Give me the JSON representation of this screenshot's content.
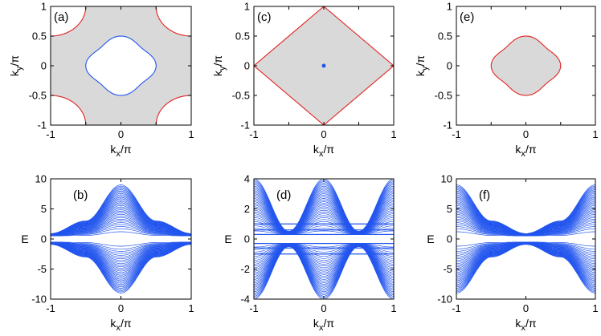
{
  "figure": {
    "colors": {
      "blue": "#2255ee",
      "red": "#e32222",
      "fill": "#d9d9d9",
      "axis": "#000000"
    }
  },
  "chart_data": [
    {
      "panel": "(a)",
      "type": "contour",
      "xlabel": "k_x/π",
      "ylabel": "k_y/π",
      "xlim": [
        -1,
        1
      ],
      "ylim": [
        -1,
        1
      ],
      "xticks": [
        "-1",
        "-0.5",
        "0",
        "0.5",
        "1"
      ],
      "yticks": [
        "-1",
        "-0.5",
        "0",
        "0.5",
        "1"
      ],
      "shown_xticks": [
        "-1",
        "0",
        "1"
      ],
      "shaded_region": "gray between the blue inner ring and the red corner arcs",
      "series": [
        {
          "color": "blue",
          "shape": "closed rounded ring",
          "center": [
            0,
            0
          ],
          "radius_axis": 0.5,
          "radius_diagonal": 0.42
        },
        {
          "color": "red",
          "shape": "four corner arcs",
          "intercepts": [
            [
              -1,
              -0.5
            ],
            [
              -0.5,
              -1
            ],
            [
              1,
              0.5
            ],
            [
              0.5,
              1
            ],
            [
              -1,
              0.5
            ],
            [
              -0.5,
              1
            ],
            [
              1,
              -0.5
            ],
            [
              0.5,
              -1
            ]
          ]
        }
      ]
    },
    {
      "panel": "(c)",
      "type": "contour",
      "xlabel": "k_x/π",
      "ylabel": "k_y/π",
      "xlim": [
        -1,
        1
      ],
      "ylim": [
        -1,
        1
      ],
      "xticks": [
        "-1",
        "-0.5",
        "0",
        "0.5",
        "1"
      ],
      "yticks": [
        "-1",
        "-0.5",
        "0",
        "0.5",
        "1"
      ],
      "shown_xticks": [
        "-1",
        "0",
        "1"
      ],
      "shaded_region": "gray diamond",
      "series": [
        {
          "color": "red",
          "shape": "diamond",
          "vertices": [
            [
              1,
              0
            ],
            [
              0,
              1
            ],
            [
              -1,
              0
            ],
            [
              0,
              -1
            ]
          ]
        },
        {
          "color": "blue",
          "shape": "point",
          "point": [
            0,
            0
          ]
        }
      ]
    },
    {
      "panel": "(e)",
      "type": "contour",
      "xlabel": "k_x/π",
      "ylabel": "k_y/π",
      "xlim": [
        -1,
        1
      ],
      "ylim": [
        -1,
        1
      ],
      "xticks": [
        "-1",
        "-0.5",
        "0",
        "0.5",
        "1"
      ],
      "yticks": [
        "-1",
        "-0.5",
        "0",
        "0.5",
        "1"
      ],
      "shown_xticks": [
        "-1",
        "0",
        "1"
      ],
      "shaded_region": "gray disk inside the red ring",
      "series": [
        {
          "color": "red",
          "shape": "closed rounded ring",
          "center": [
            0,
            0
          ],
          "radius_axis": 0.5,
          "radius_diagonal": 0.42
        }
      ]
    },
    {
      "panel": "(b)",
      "type": "line",
      "xlabel": "k_x/π",
      "ylabel": "E",
      "xlim": [
        -1,
        1
      ],
      "ylim": [
        -10,
        10
      ],
      "xticks": [
        "-1",
        "0",
        "1"
      ],
      "yticks": [
        "-10",
        "-5",
        "0",
        "5",
        "10"
      ],
      "band_color": "blue",
      "band_edges": {
        "x": [
          -1,
          -0.5,
          0,
          0.5,
          1
        ],
        "upper": [
          0.9,
          3,
          9,
          3,
          0.9
        ],
        "inner": [
          0.5,
          0.6,
          1.2,
          0.6,
          0.5
        ]
      },
      "band_count_per_sign": 32
    },
    {
      "panel": "(d)",
      "type": "line",
      "xlabel": "k_x/π",
      "ylabel": "E",
      "xlim": [
        -1,
        1
      ],
      "ylim": [
        -4,
        4
      ],
      "xticks": [
        "-1",
        "0",
        "1"
      ],
      "yticks": [
        "-4",
        "-2",
        "0",
        "2",
        "4"
      ],
      "band_color": "blue",
      "band_edges": {
        "x": [
          -1,
          -0.5,
          0,
          0.5,
          1
        ],
        "upper": [
          4,
          0.5,
          4,
          0.5,
          4
        ],
        "inner": [
          0.3,
          0.3,
          0.3,
          0.3,
          0.3
        ]
      },
      "flat_band_energies": [
        0.3,
        0.6,
        1.0,
        -0.3,
        -0.6,
        -1.0
      ],
      "band_count_per_sign": 32
    },
    {
      "panel": "(f)",
      "type": "line",
      "xlabel": "k_x/π",
      "ylabel": "E",
      "xlim": [
        -1,
        1
      ],
      "ylim": [
        -10,
        10
      ],
      "xticks": [
        "-1",
        "0",
        "1"
      ],
      "yticks": [
        "-10",
        "-5",
        "0",
        "5",
        "10"
      ],
      "band_color": "blue",
      "band_edges": {
        "x": [
          -1,
          -0.5,
          0,
          0.5,
          1
        ],
        "upper": [
          9,
          3,
          0.9,
          3,
          9
        ],
        "inner": [
          1.2,
          0.6,
          0.5,
          0.6,
          1.2
        ]
      },
      "band_count_per_sign": 32
    }
  ]
}
